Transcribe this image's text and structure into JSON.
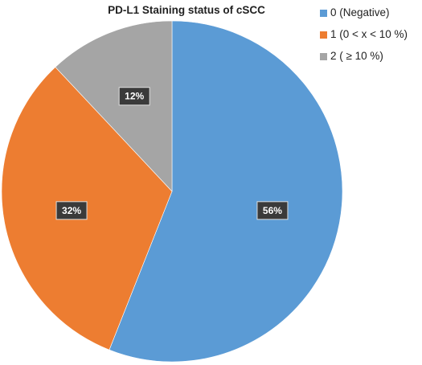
{
  "chart_data": {
    "type": "pie",
    "title": "PD-L1 Staining  status of cSCC",
    "start_angle_deg": 0,
    "direction": "clockwise",
    "legend_position": "top-right",
    "slices": [
      {
        "label": "0 (Negative)",
        "value": 56,
        "data_label": "56%",
        "color": "#5b9bd5"
      },
      {
        "label": "1 (0 < x <  10 %)",
        "value": 32,
        "data_label": "32%",
        "color": "#ed7d31"
      },
      {
        "label": "2 ( ≥ 10 %)",
        "value": 12,
        "data_label": "12%",
        "color": "#a5a5a5"
      }
    ]
  }
}
